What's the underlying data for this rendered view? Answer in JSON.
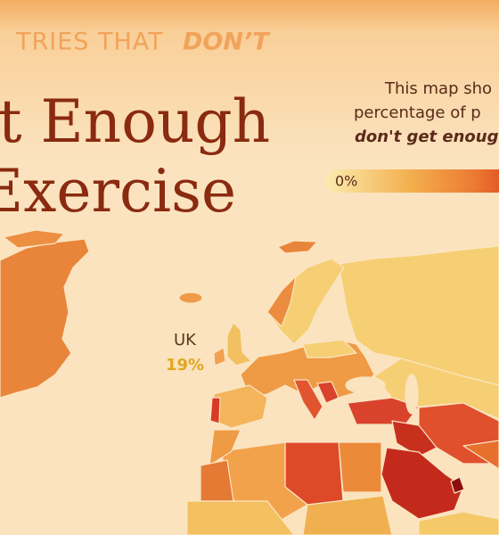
{
  "header": {
    "kicker": "TRIES THAT",
    "kicker_emphasis": "DON’T",
    "title_lines": [
      "t Enough",
      "Exercise"
    ]
  },
  "legend": {
    "description_lines": [
      "This map sho",
      "percentage of p",
      "don't get enoug"
    ],
    "ticks": [
      {
        "value": 0,
        "label": "0%"
      }
    ]
  },
  "map_labels": [
    {
      "name": "UK",
      "value": 19,
      "label": "19%"
    }
  ]
}
